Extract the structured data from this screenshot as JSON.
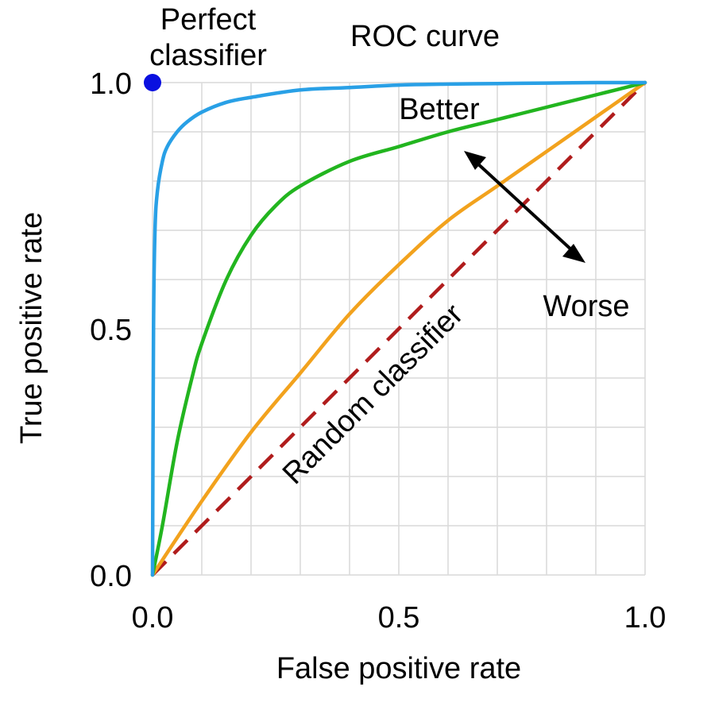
{
  "chart_data": {
    "type": "line",
    "title": "ROC curve",
    "xlabel": "False positive rate",
    "ylabel": "True positive rate",
    "xlim": [
      0,
      1
    ],
    "ylim": [
      0,
      1
    ],
    "grid": true,
    "grid_step": 0.1,
    "x_ticks": [
      {
        "value": 0.0,
        "label": "0.0"
      },
      {
        "value": 0.5,
        "label": "0.5"
      },
      {
        "value": 1.0,
        "label": "1.0"
      }
    ],
    "y_ticks": [
      {
        "value": 0.0,
        "label": "0.0"
      },
      {
        "value": 0.5,
        "label": "0.5"
      },
      {
        "value": 1.0,
        "label": "1.0"
      }
    ],
    "colors": {
      "blue_curve": "#29a0e6",
      "green_curve": "#22b51f",
      "orange_curve": "#f2a21d",
      "random": "#b01c1c",
      "perfect": "#0a10e0",
      "text": "#000000",
      "grid": "#d9d9d9"
    },
    "series": [
      {
        "name": "blue-curve",
        "color": "#29a0e6",
        "x": [
          0,
          0.002,
          0.005,
          0.01,
          0.02,
          0.03,
          0.05,
          0.07,
          0.1,
          0.15,
          0.2,
          0.3,
          0.4,
          0.5,
          0.6,
          0.7,
          0.8,
          0.9,
          1.0
        ],
        "y": [
          0,
          0.5,
          0.7,
          0.78,
          0.84,
          0.87,
          0.9,
          0.92,
          0.94,
          0.96,
          0.97,
          0.985,
          0.99,
          0.995,
          0.997,
          0.998,
          0.999,
          1.0,
          1.0
        ]
      },
      {
        "name": "green-curve",
        "color": "#22b51f",
        "x": [
          0,
          0.02,
          0.05,
          0.08,
          0.1,
          0.15,
          0.2,
          0.25,
          0.3,
          0.4,
          0.5,
          0.6,
          0.7,
          0.8,
          0.9,
          1.0
        ],
        "y": [
          0,
          0.1,
          0.27,
          0.4,
          0.47,
          0.6,
          0.69,
          0.75,
          0.79,
          0.84,
          0.87,
          0.9,
          0.925,
          0.95,
          0.975,
          1.0
        ]
      },
      {
        "name": "orange-curve",
        "color": "#f2a21d",
        "x": [
          0,
          0.1,
          0.2,
          0.3,
          0.4,
          0.5,
          0.6,
          0.7,
          0.8,
          0.9,
          1.0
        ],
        "y": [
          0,
          0.15,
          0.29,
          0.41,
          0.53,
          0.63,
          0.72,
          0.79,
          0.86,
          0.93,
          1.0
        ]
      },
      {
        "name": "random-classifier",
        "color": "#b01c1c",
        "dashed": true,
        "x": [
          0,
          1
        ],
        "y": [
          0,
          1
        ]
      }
    ],
    "points": [
      {
        "name": "perfect-classifier",
        "x": 0,
        "y": 1,
        "color": "#0a10e0"
      }
    ],
    "annotations": {
      "perfect_line1": "Perfect",
      "perfect_line2": "classifier",
      "random_label": "Random classifier",
      "better_label": "Better",
      "worse_label": "Worse"
    }
  }
}
